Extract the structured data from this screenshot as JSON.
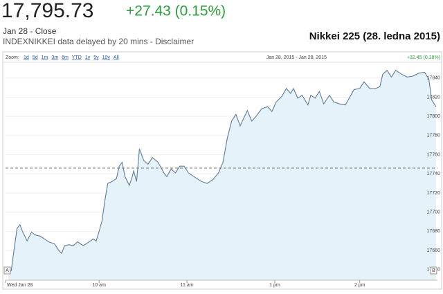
{
  "header": {
    "price": "17,795.73",
    "change": "+27.43 (0.15%)",
    "date": "Jan 28 - Close",
    "delay_note": "INDEXNIKKEI data delayed by 20 mins - Disclaimer",
    "title": "Nikkei 225 (28. ledna 2015)"
  },
  "chart_data": {
    "type": "line",
    "zoom_label": "Zoom:",
    "zoom_options": [
      "1d",
      "5d",
      "1m",
      "3m",
      "6m",
      "YTD",
      "1y",
      "5y",
      "10y",
      "All"
    ],
    "range_label": "Jan 28, 2015 - Jan 28, 2015",
    "range_change": "+32.45 (0.18%)",
    "markers": [
      "A",
      "B"
    ],
    "color": "#5a7a9a",
    "fill": "#e6f2fa",
    "reference_line": 17746,
    "grid": true,
    "x": [
      2,
      4,
      6,
      8,
      10,
      12,
      15,
      18,
      21,
      24,
      27,
      30,
      34,
      37,
      39,
      41,
      44,
      47,
      50,
      54,
      58,
      61,
      63,
      65,
      67,
      69,
      71,
      74,
      77,
      79,
      81,
      83,
      86,
      88,
      89,
      91,
      93,
      96,
      99,
      102,
      106,
      110,
      112,
      115,
      118,
      121,
      124,
      127,
      131,
      136,
      140,
      144,
      148,
      151,
      154,
      157,
      160,
      163,
      166,
      168,
      171,
      174,
      178,
      182,
      185,
      188,
      192,
      195,
      198,
      200,
      203,
      206,
      210,
      212,
      215,
      218,
      221,
      225,
      228,
      232,
      236,
      238,
      242,
      246,
      249,
      253,
      257,
      260,
      262,
      265,
      268,
      271,
      275,
      279,
      283,
      287,
      291,
      294,
      296,
      299
    ],
    "values": [
      17636,
      17639,
      17662,
      17683,
      17687,
      17679,
      17670,
      17679,
      17676,
      17675,
      17672,
      17669,
      17667,
      17660,
      17657,
      17665,
      17666,
      17665,
      17669,
      17665,
      17669,
      17672,
      17670,
      17680,
      17691,
      17712,
      17730,
      17732,
      17735,
      17748,
      17752,
      17737,
      17728,
      17737,
      17743,
      17732,
      17766,
      17754,
      17750,
      17757,
      17752,
      17741,
      17737,
      17745,
      17741,
      17748,
      17748,
      17741,
      17737,
      17732,
      17730,
      17734,
      17741,
      17752,
      17777,
      17795,
      17802,
      17790,
      17800,
      17806,
      17795,
      17800,
      17808,
      17810,
      17805,
      17815,
      17821,
      17829,
      17824,
      17829,
      17819,
      17822,
      17812,
      17822,
      17819,
      17826,
      17813,
      17822,
      17815,
      17813,
      17812,
      17817,
      17828,
      17829,
      17836,
      17829,
      17829,
      17831,
      17844,
      17848,
      17841,
      17848,
      17844,
      17841,
      17842,
      17845,
      17846,
      17839,
      17817,
      17810
    ],
    "xlim": [
      0,
      300
    ],
    "xticks": [
      {
        "value": 0,
        "label": "Wed Jan 28"
      },
      {
        "value": 65,
        "label": "10 am"
      },
      {
        "value": 126,
        "label": "11 am"
      },
      {
        "value": 187,
        "label": "1 pm"
      },
      {
        "value": 246,
        "label": "2 pm"
      }
    ],
    "ylim": [
      17629,
      17855
    ],
    "yticks": [
      17640,
      17660,
      17680,
      17700,
      17720,
      17740,
      17760,
      17780,
      17800,
      17820,
      17840
    ]
  }
}
